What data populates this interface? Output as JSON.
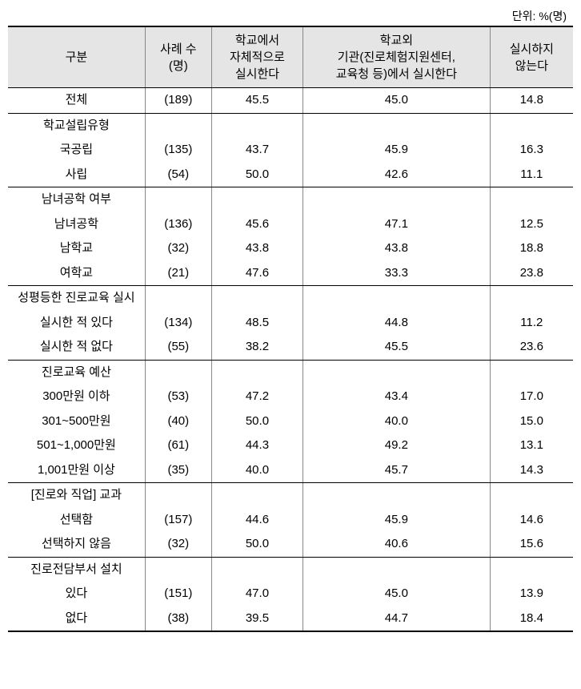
{
  "unit_label": "단위: %(명)",
  "columns": {
    "c0": "구분",
    "c1": "사례 수\n(명)",
    "c2": "학교에서\n자체적으로\n실시한다",
    "c3": "학교외\n기관(진로체험지원센터,\n교육청 등)에서 실시한다",
    "c4": "실시하지\n않는다"
  },
  "total": {
    "label": "전체",
    "count": "(189)",
    "v1": "45.5",
    "v2": "45.0",
    "v3": "14.8"
  },
  "groups": [
    {
      "header": "학교설립유형",
      "rows": [
        {
          "label": "국공립",
          "count": "(135)",
          "v1": "43.7",
          "v2": "45.9",
          "v3": "16.3"
        },
        {
          "label": "사립",
          "count": "(54)",
          "v1": "50.0",
          "v2": "42.6",
          "v3": "11.1"
        }
      ]
    },
    {
      "header": "남녀공학 여부",
      "rows": [
        {
          "label": "남녀공학",
          "count": "(136)",
          "v1": "45.6",
          "v2": "47.1",
          "v3": "12.5"
        },
        {
          "label": "남학교",
          "count": "(32)",
          "v1": "43.8",
          "v2": "43.8",
          "v3": "18.8"
        },
        {
          "label": "여학교",
          "count": "(21)",
          "v1": "47.6",
          "v2": "33.3",
          "v3": "23.8"
        }
      ]
    },
    {
      "header": "성평등한 진로교육 실시",
      "rows": [
        {
          "label": "실시한 적 있다",
          "count": "(134)",
          "v1": "48.5",
          "v2": "44.8",
          "v3": "11.2"
        },
        {
          "label": "실시한 적 없다",
          "count": "(55)",
          "v1": "38.2",
          "v2": "45.5",
          "v3": "23.6"
        }
      ]
    },
    {
      "header": "진로교육 예산",
      "rows": [
        {
          "label": "300만원 이하",
          "count": "(53)",
          "v1": "47.2",
          "v2": "43.4",
          "v3": "17.0"
        },
        {
          "label": "301~500만원",
          "count": "(40)",
          "v1": "50.0",
          "v2": "40.0",
          "v3": "15.0"
        },
        {
          "label": "501~1,000만원",
          "count": "(61)",
          "v1": "44.3",
          "v2": "49.2",
          "v3": "13.1"
        },
        {
          "label": "1,001만원 이상",
          "count": "(35)",
          "v1": "40.0",
          "v2": "45.7",
          "v3": "14.3"
        }
      ]
    },
    {
      "header": "[진로와 직업] 교과",
      "rows": [
        {
          "label": "선택함",
          "count": "(157)",
          "v1": "44.6",
          "v2": "45.9",
          "v3": "14.6"
        },
        {
          "label": "선택하지 않음",
          "count": "(32)",
          "v1": "50.0",
          "v2": "40.6",
          "v3": "15.6"
        }
      ]
    },
    {
      "header": "진로전담부서 설치",
      "rows": [
        {
          "label": "있다",
          "count": "(151)",
          "v1": "47.0",
          "v2": "45.0",
          "v3": "13.9"
        },
        {
          "label": "없다",
          "count": "(38)",
          "v1": "39.5",
          "v2": "44.7",
          "v3": "18.4"
        }
      ]
    }
  ]
}
